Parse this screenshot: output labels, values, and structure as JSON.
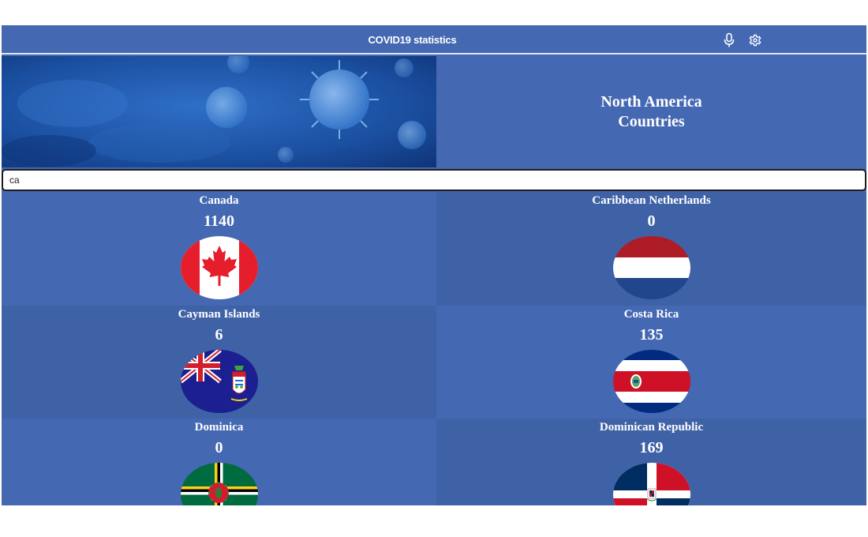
{
  "header": {
    "title": "COVID19 statistics",
    "icons": [
      "microphone-icon",
      "gear-icon"
    ]
  },
  "banner": {
    "line1": "North America",
    "line2": "Countries"
  },
  "search": {
    "value": "ca"
  },
  "countries": [
    {
      "name": "Canada",
      "count": "1140",
      "flag": "flag-canada"
    },
    {
      "name": "Caribbean Netherlands",
      "count": "0",
      "flag": "flag-netherlands"
    },
    {
      "name": "Cayman Islands",
      "count": "6",
      "flag": "flag-cayman-islands"
    },
    {
      "name": "Costa Rica",
      "count": "135",
      "flag": "flag-costa-rica"
    },
    {
      "name": "Dominica",
      "count": "0",
      "flag": "flag-dominica"
    },
    {
      "name": "Dominican Republic",
      "count": "169",
      "flag": "flag-dominican-republic"
    }
  ],
  "colors": {
    "primary": "#4468b2",
    "card_alt": "#3f62a7",
    "text": "#ffffff"
  }
}
